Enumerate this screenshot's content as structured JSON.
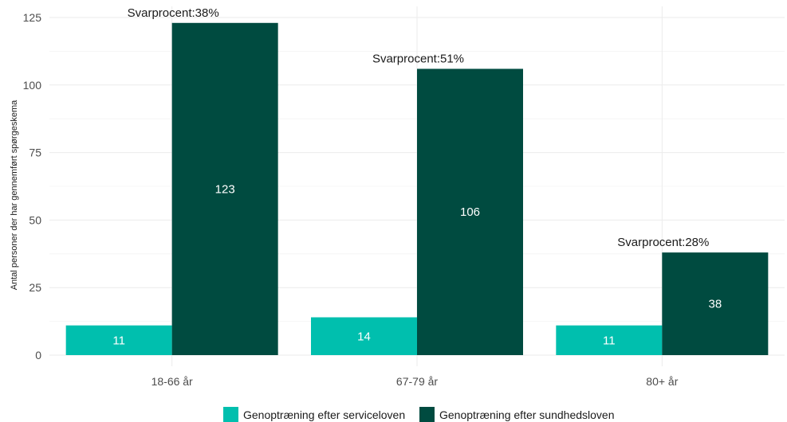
{
  "chart_data": {
    "type": "bar",
    "categories": [
      "18-66 år",
      "67-79 år",
      "80+ år"
    ],
    "series": [
      {
        "name": "Genoptræning efter serviceloven",
        "values": [
          11,
          14,
          11
        ],
        "color": "#00BFAE"
      },
      {
        "name": "Genoptræning efter sundhedsloven",
        "values": [
          123,
          106,
          38
        ],
        "color": "#004B40"
      }
    ],
    "data_labels": [
      [
        "11",
        "14",
        "11"
      ],
      [
        "123",
        "106",
        "38"
      ]
    ],
    "annotations": [
      "Svarprocent:38%",
      "Svarprocent:51%",
      "Svarprocent:28%"
    ],
    "title": "",
    "xlabel": "",
    "ylabel": "Antal personer der har gennemført spørgeskema",
    "ylim": [
      0,
      125
    ],
    "yticks": [
      0,
      25,
      50,
      75,
      100,
      125
    ],
    "grid": true,
    "legend_position": "bottom"
  }
}
